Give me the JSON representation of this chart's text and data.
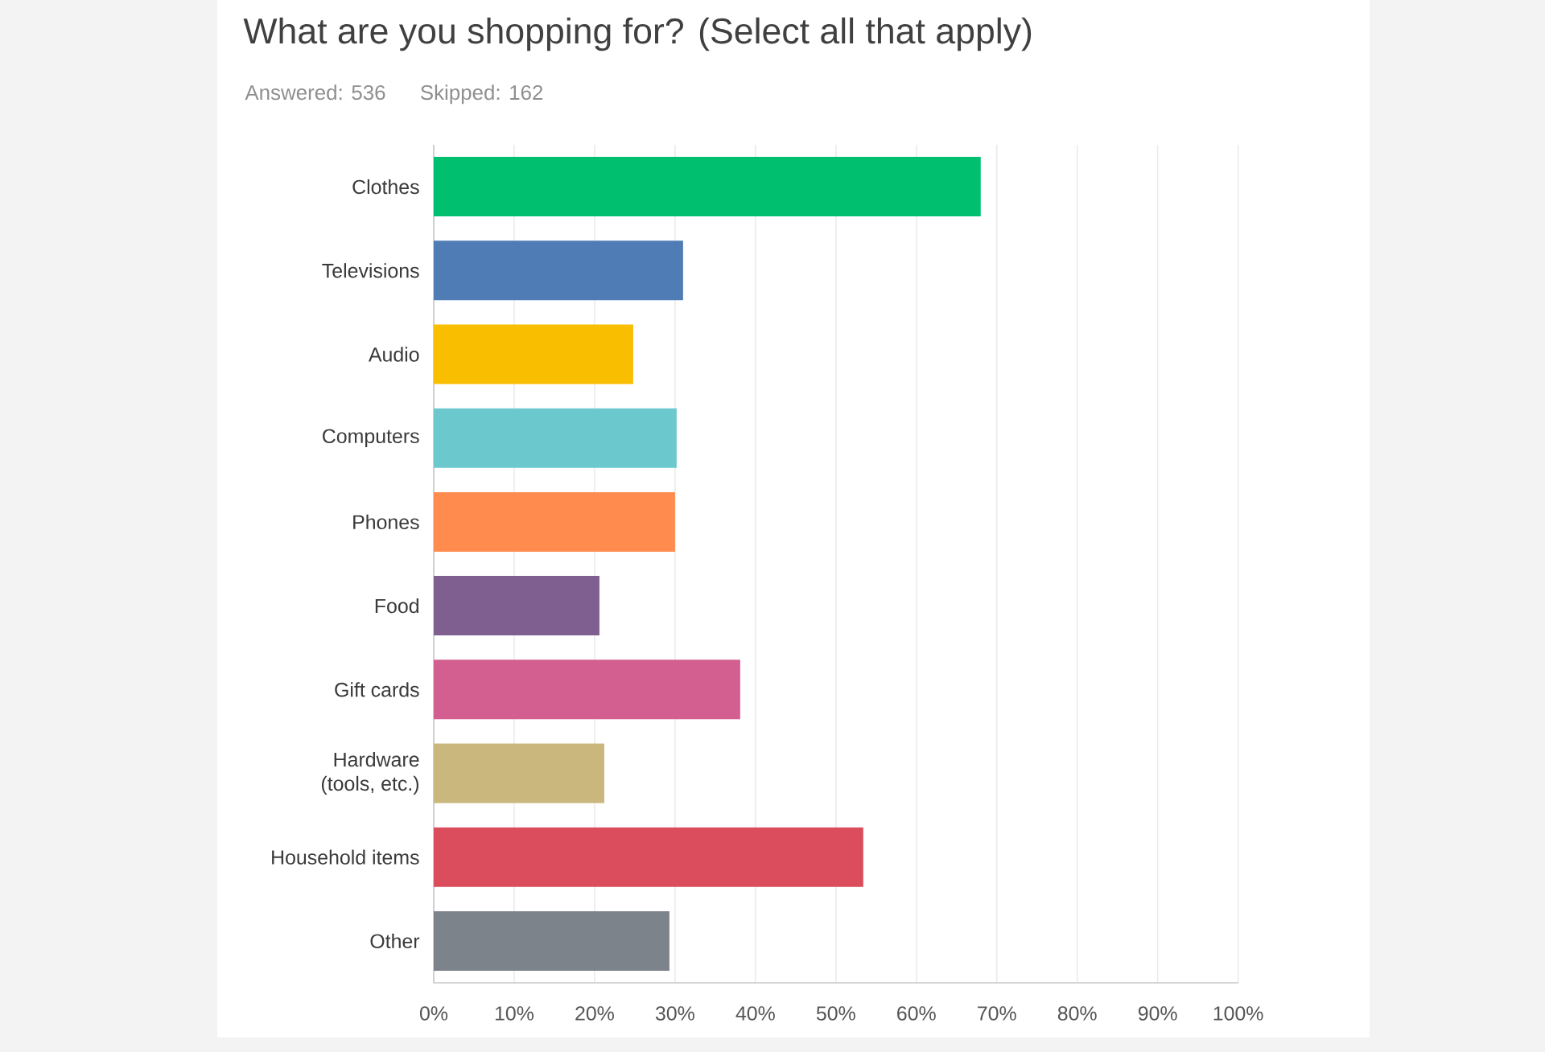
{
  "chart_data": {
    "type": "bar",
    "orientation": "horizontal",
    "title": "What are you shopping for? (Select all that apply)",
    "subtitle": "Answered: 536",
    "annotations": [
      "Skipped: 162"
    ],
    "categories": [
      "Clothes",
      "Televisions",
      "Audio",
      "Computers",
      "Phones",
      "Food",
      "Gift cards",
      "Hardware (tools, etc.)",
      "Household items",
      "Other"
    ],
    "values": [
      68,
      31,
      24.8,
      30.2,
      30,
      20.6,
      38.1,
      21.2,
      53.4,
      29.3
    ],
    "colors": [
      "#00bf6f",
      "#507cb6",
      "#f9be00",
      "#6bc8cd",
      "#ff8b4f",
      "#7f5f90",
      "#d25f90",
      "#c9b77d",
      "#db4d5c",
      "#7d838b"
    ],
    "xlim": [
      0,
      100
    ],
    "xticks": [
      {
        "value": 0,
        "label": "0%"
      },
      {
        "value": 10,
        "label": "10%"
      },
      {
        "value": 20,
        "label": "20%"
      },
      {
        "value": 30,
        "label": "30%"
      },
      {
        "value": 40,
        "label": "40%"
      },
      {
        "value": 50,
        "label": "50%"
      },
      {
        "value": 60,
        "label": "60%"
      },
      {
        "value": 70,
        "label": "70%"
      },
      {
        "value": 80,
        "label": "80%"
      },
      {
        "value": 90,
        "label": "90%"
      },
      {
        "value": 100,
        "label": "100%"
      }
    ],
    "grid": "x"
  }
}
